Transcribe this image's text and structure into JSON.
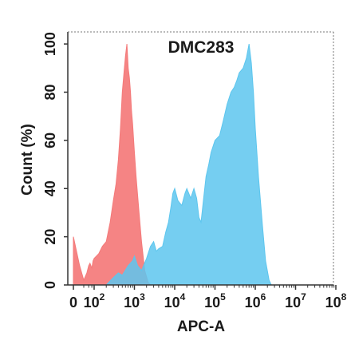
{
  "chart_data": {
    "type": "area",
    "title": "DMC283",
    "xlabel": "APC-A",
    "ylabel": "Count  (%)",
    "x_scale": "log",
    "ylim": [
      0,
      105
    ],
    "yticks": [
      {
        "value": 0,
        "label": "0"
      },
      {
        "value": 20,
        "label": "20"
      },
      {
        "value": 40,
        "label": "40"
      },
      {
        "value": 60,
        "label": "60"
      },
      {
        "value": 80,
        "label": "80"
      },
      {
        "value": 100,
        "label": "100"
      }
    ],
    "xticks": [
      {
        "value": 0,
        "label": "0"
      },
      {
        "value": 100,
        "base": "10",
        "exp": "2"
      },
      {
        "value": 1000,
        "base": "10",
        "exp": "3"
      },
      {
        "value": 10000,
        "base": "10",
        "exp": "4"
      },
      {
        "value": 100000,
        "base": "10",
        "exp": "5"
      },
      {
        "value": 1000000,
        "base": "10",
        "exp": "6"
      },
      {
        "value": 10000000,
        "base": "10",
        "exp": "7"
      },
      {
        "value": 100000000,
        "base": "10",
        "exp": "8"
      }
    ],
    "grid": false,
    "series": [
      {
        "color": "#f47a7a",
        "opacity": 0.92,
        "points": [
          [
            1,
            20
          ],
          [
            4,
            8
          ],
          [
            10,
            2
          ],
          [
            20,
            5
          ],
          [
            30,
            8
          ],
          [
            40,
            9
          ],
          [
            60,
            7
          ],
          [
            80,
            10
          ],
          [
            100,
            11
          ],
          [
            130,
            13
          ],
          [
            160,
            16
          ],
          [
            200,
            18
          ],
          [
            250,
            26
          ],
          [
            300,
            35
          ],
          [
            350,
            42
          ],
          [
            400,
            52
          ],
          [
            450,
            65
          ],
          [
            500,
            80
          ],
          [
            550,
            88
          ],
          [
            600,
            95
          ],
          [
            650,
            100
          ],
          [
            700,
            90
          ],
          [
            750,
            86
          ],
          [
            800,
            80
          ],
          [
            850,
            72
          ],
          [
            900,
            67
          ],
          [
            1000,
            55
          ],
          [
            1100,
            45
          ],
          [
            1300,
            30
          ],
          [
            1500,
            18
          ],
          [
            1800,
            6
          ],
          [
            2200,
            1
          ],
          [
            2500,
            0
          ]
        ]
      },
      {
        "color": "#5dc6ee",
        "opacity": 0.85,
        "points": [
          [
            200,
            0
          ],
          [
            300,
            3
          ],
          [
            400,
            5
          ],
          [
            500,
            4
          ],
          [
            700,
            8
          ],
          [
            900,
            10
          ],
          [
            1000,
            12
          ],
          [
            1200,
            8
          ],
          [
            1500,
            6
          ],
          [
            2000,
            11
          ],
          [
            2500,
            16
          ],
          [
            3000,
            18
          ],
          [
            3500,
            14
          ],
          [
            4000,
            15
          ],
          [
            5000,
            16
          ],
          [
            6000,
            22
          ],
          [
            7000,
            26
          ],
          [
            8000,
            32
          ],
          [
            9000,
            38
          ],
          [
            10000,
            40
          ],
          [
            12000,
            35
          ],
          [
            15000,
            33
          ],
          [
            18000,
            38
          ],
          [
            20000,
            40
          ],
          [
            25000,
            36
          ],
          [
            30000,
            40
          ],
          [
            35000,
            36
          ],
          [
            40000,
            28
          ],
          [
            45000,
            26
          ],
          [
            50000,
            33
          ],
          [
            60000,
            45
          ],
          [
            70000,
            50
          ],
          [
            80000,
            55
          ],
          [
            100000,
            60
          ],
          [
            130000,
            62
          ],
          [
            160000,
            68
          ],
          [
            200000,
            75
          ],
          [
            250000,
            80
          ],
          [
            300000,
            82
          ],
          [
            350000,
            85
          ],
          [
            400000,
            88
          ],
          [
            500000,
            90
          ],
          [
            600000,
            94
          ],
          [
            700000,
            100
          ],
          [
            800000,
            92
          ],
          [
            900000,
            80
          ],
          [
            1000000,
            65
          ],
          [
            1200000,
            45
          ],
          [
            1500000,
            25
          ],
          [
            1800000,
            10
          ],
          [
            2200000,
            2
          ],
          [
            2500000,
            0
          ]
        ]
      }
    ]
  }
}
